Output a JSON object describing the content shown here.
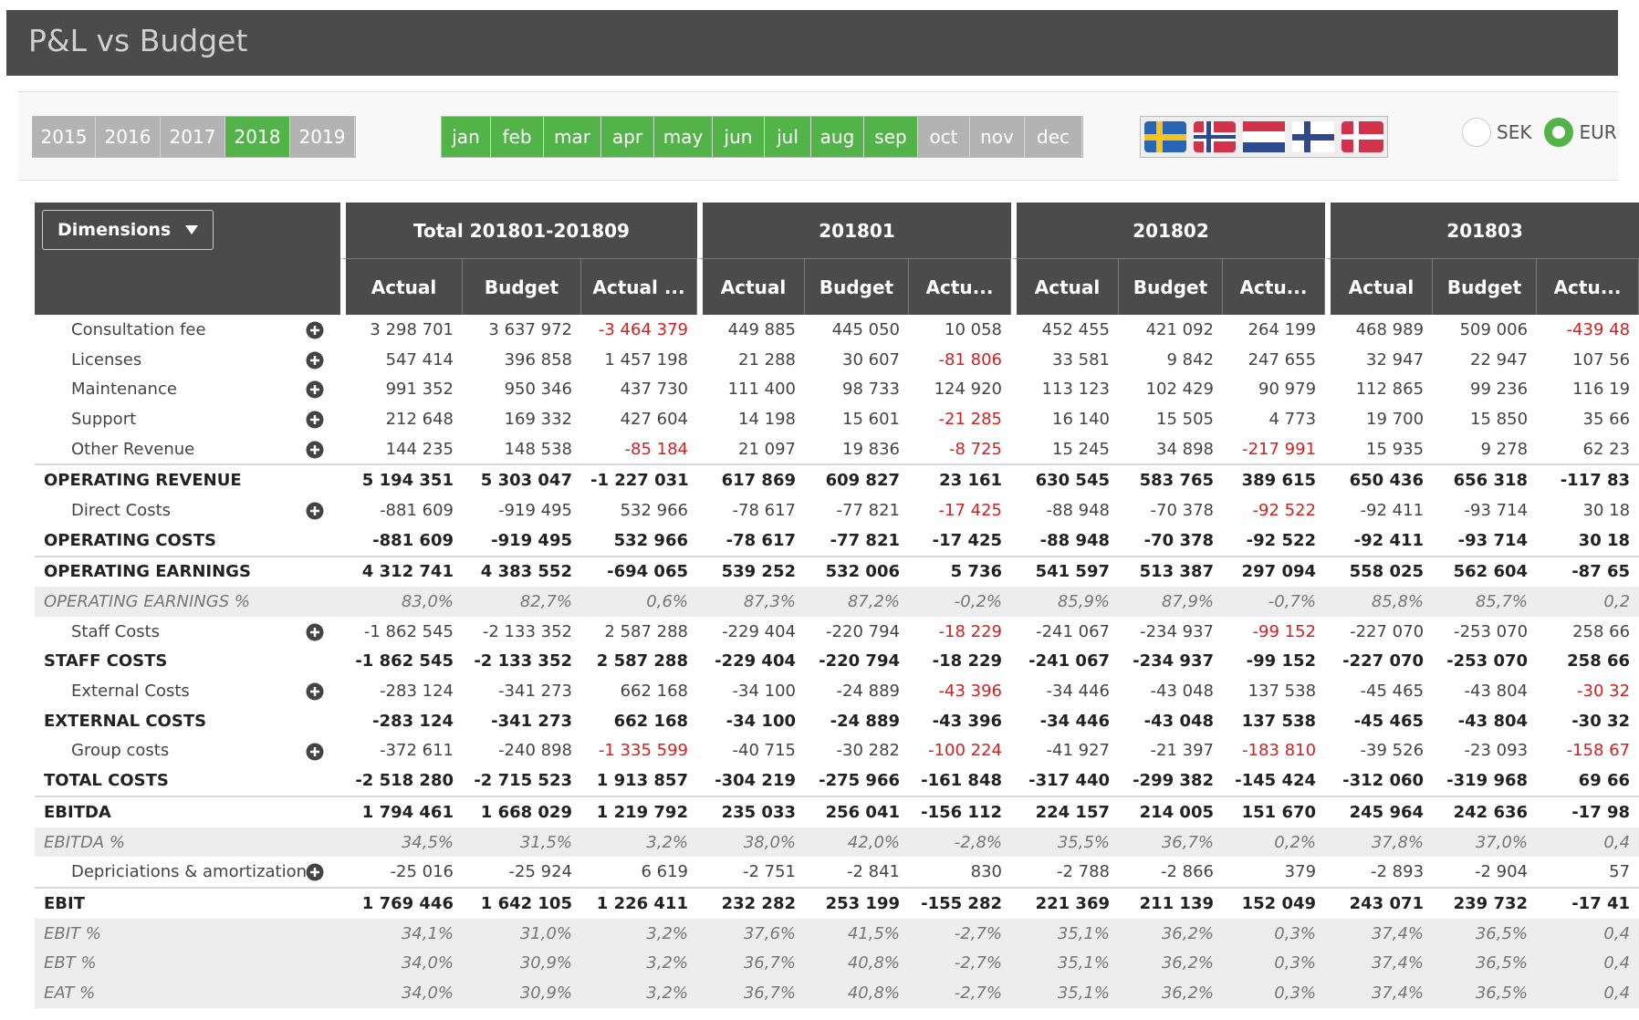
{
  "header": {
    "title": "P&L vs Budget"
  },
  "years": {
    "options": [
      "2015",
      "2016",
      "2017",
      "2018",
      "2019"
    ],
    "selected": [
      3
    ]
  },
  "months": {
    "options": [
      "jan",
      "feb",
      "mar",
      "apr",
      "may",
      "jun",
      "jul",
      "aug",
      "sep",
      "oct",
      "nov",
      "dec"
    ],
    "selected": [
      0,
      1,
      2,
      3,
      4,
      5,
      6,
      7,
      8
    ]
  },
  "currency": {
    "options": [
      "SEK",
      "EUR"
    ],
    "selected": 1
  },
  "table": {
    "dimensions": "Dimensions",
    "groups": [
      {
        "title": "Total 201801-201809",
        "columns": [
          "Actual",
          "Budget",
          "Actual ..."
        ]
      },
      {
        "title": "201801",
        "columns": [
          "Actual",
          "Budget",
          "Actu..."
        ]
      },
      {
        "title": "201802",
        "columns": [
          "Actual",
          "Budget",
          "Actu..."
        ]
      },
      {
        "title": "201803",
        "columns": [
          "Actual",
          "Budget",
          "Actu..."
        ]
      }
    ],
    "rows": [
      {
        "label": "Consultation fee",
        "kind": "detail",
        "cells": [
          "3 298 701",
          "3 637 972",
          "-3 464 379",
          "449 885",
          "445 050",
          "10 058",
          "452 455",
          "421 092",
          "264 199",
          "468 989",
          "509 006",
          "-439 48"
        ]
      },
      {
        "label": "Licenses",
        "kind": "detail",
        "cells": [
          "547 414",
          "396 858",
          "1 457 198",
          "21 288",
          "30 607",
          "-81 806",
          "33 581",
          "9 842",
          "247 655",
          "32 947",
          "22 947",
          "107 56"
        ]
      },
      {
        "label": "Maintenance",
        "kind": "detail",
        "cells": [
          "991 352",
          "950 346",
          "437 730",
          "111 400",
          "98 733",
          "124 920",
          "113 123",
          "102 429",
          "90 979",
          "112 865",
          "99 236",
          "116 19"
        ]
      },
      {
        "label": "Support",
        "kind": "detail",
        "cells": [
          "212 648",
          "169 332",
          "427 604",
          "14 198",
          "15 601",
          "-21 285",
          "16 140",
          "15 505",
          "4 773",
          "19 700",
          "15 850",
          "35 66"
        ]
      },
      {
        "label": "Other Revenue",
        "kind": "detail",
        "cells": [
          "144 235",
          "148 538",
          "-85 184",
          "21 097",
          "19 836",
          "-8 725",
          "15 245",
          "34 898",
          "-217 991",
          "15 935",
          "9 278",
          "62 23"
        ]
      },
      {
        "label": "OPERATING REVENUE",
        "kind": "total",
        "cells": [
          "5 194 351",
          "5 303 047",
          "-1 227 031",
          "617 869",
          "609 827",
          "23 161",
          "630 545",
          "583 765",
          "389 615",
          "650 436",
          "656 318",
          "-117 83"
        ]
      },
      {
        "label": "Direct Costs",
        "kind": "detail",
        "cells": [
          "-881 609",
          "-919 495",
          "532 966",
          "-78 617",
          "-77 821",
          "-17 425",
          "-88 948",
          "-70 378",
          "-92 522",
          "-92 411",
          "-93 714",
          "30 18"
        ]
      },
      {
        "label": "OPERATING COSTS",
        "kind": "subtotal",
        "cells": [
          "-881 609",
          "-919 495",
          "532 966",
          "-78 617",
          "-77 821",
          "-17 425",
          "-88 948",
          "-70 378",
          "-92 522",
          "-92 411",
          "-93 714",
          "30 18"
        ]
      },
      {
        "label": "OPERATING EARNINGS",
        "kind": "total",
        "cells": [
          "4 312 741",
          "4 383 552",
          "-694 065",
          "539 252",
          "532 006",
          "5 736",
          "541 597",
          "513 387",
          "297 094",
          "558 025",
          "562 604",
          "-87 65"
        ]
      },
      {
        "label": "OPERATING EARNINGS %",
        "kind": "pct",
        "cells": [
          "83,0%",
          "82,7%",
          "0,6%",
          "87,3%",
          "87,2%",
          "-0,2%",
          "85,9%",
          "87,9%",
          "-0,7%",
          "85,8%",
          "85,7%",
          "0,2"
        ]
      },
      {
        "label": "Staff Costs",
        "kind": "detail",
        "cells": [
          "-1 862 545",
          "-2 133 352",
          "2 587 288",
          "-229 404",
          "-220 794",
          "-18 229",
          "-241 067",
          "-234 937",
          "-99 152",
          "-227 070",
          "-253 070",
          "258 66"
        ]
      },
      {
        "label": "STAFF COSTS",
        "kind": "subtotal",
        "cells": [
          "-1 862 545",
          "-2 133 352",
          "2 587 288",
          "-229 404",
          "-220 794",
          "-18 229",
          "-241 067",
          "-234 937",
          "-99 152",
          "-227 070",
          "-253 070",
          "258 66"
        ]
      },
      {
        "label": "External Costs",
        "kind": "detail",
        "cells": [
          "-283 124",
          "-341 273",
          "662 168",
          "-34 100",
          "-24 889",
          "-43 396",
          "-34 446",
          "-43 048",
          "137 538",
          "-45 465",
          "-43 804",
          "-30 32"
        ]
      },
      {
        "label": "EXTERNAL COSTS",
        "kind": "subtotal",
        "cells": [
          "-283 124",
          "-341 273",
          "662 168",
          "-34 100",
          "-24 889",
          "-43 396",
          "-34 446",
          "-43 048",
          "137 538",
          "-45 465",
          "-43 804",
          "-30 32"
        ]
      },
      {
        "label": "Group costs",
        "kind": "detail",
        "cells": [
          "-372 611",
          "-240 898",
          "-1 335 599",
          "-40 715",
          "-30 282",
          "-100 224",
          "-41 927",
          "-21 397",
          "-183 810",
          "-39 526",
          "-23 093",
          "-158 67"
        ]
      },
      {
        "label": "TOTAL COSTS",
        "kind": "subtotal",
        "cells": [
          "-2 518 280",
          "-2 715 523",
          "1 913 857",
          "-304 219",
          "-275 966",
          "-161 848",
          "-317 440",
          "-299 382",
          "-145 424",
          "-312 060",
          "-319 968",
          "69 66"
        ]
      },
      {
        "label": "EBITDA",
        "kind": "total",
        "cells": [
          "1 794 461",
          "1 668 029",
          "1 219 792",
          "235 033",
          "256 041",
          "-156 112",
          "224 157",
          "214 005",
          "151 670",
          "245 964",
          "242 636",
          "-17 98"
        ]
      },
      {
        "label": "EBITDA %",
        "kind": "pct",
        "cells": [
          "34,5%",
          "31,5%",
          "3,2%",
          "38,0%",
          "42,0%",
          "-2,8%",
          "35,5%",
          "36,7%",
          "0,2%",
          "37,8%",
          "37,0%",
          "0,4"
        ]
      },
      {
        "label": "Depriciations & amortization",
        "kind": "detail",
        "cells": [
          "-25 016",
          "-25 924",
          "6 619",
          "-2 751",
          "-2 841",
          "830",
          "-2 788",
          "-2 866",
          "379",
          "-2 893",
          "-2 904",
          "57"
        ]
      },
      {
        "label": "EBIT",
        "kind": "total",
        "cells": [
          "1 769 446",
          "1 642 105",
          "1 226 411",
          "232 282",
          "253 199",
          "-155 282",
          "221 369",
          "211 139",
          "152 049",
          "243 071",
          "239 732",
          "-17 41"
        ]
      },
      {
        "label": "EBIT %",
        "kind": "pct",
        "cells": [
          "34,1%",
          "31,0%",
          "3,2%",
          "37,6%",
          "41,5%",
          "-2,7%",
          "35,1%",
          "36,2%",
          "0,3%",
          "37,4%",
          "36,5%",
          "0,4"
        ]
      },
      {
        "label": "EBT %",
        "kind": "pct",
        "cells": [
          "34,0%",
          "30,9%",
          "3,2%",
          "36,7%",
          "40,8%",
          "-2,7%",
          "35,1%",
          "36,2%",
          "0,3%",
          "37,4%",
          "36,5%",
          "0,4"
        ]
      },
      {
        "label": "EAT %",
        "kind": "pct",
        "cells": [
          "34,0%",
          "30,9%",
          "3,2%",
          "36,7%",
          "40,8%",
          "-2,7%",
          "35,1%",
          "36,2%",
          "0,3%",
          "37,4%",
          "36,5%",
          "0,4"
        ]
      }
    ]
  }
}
